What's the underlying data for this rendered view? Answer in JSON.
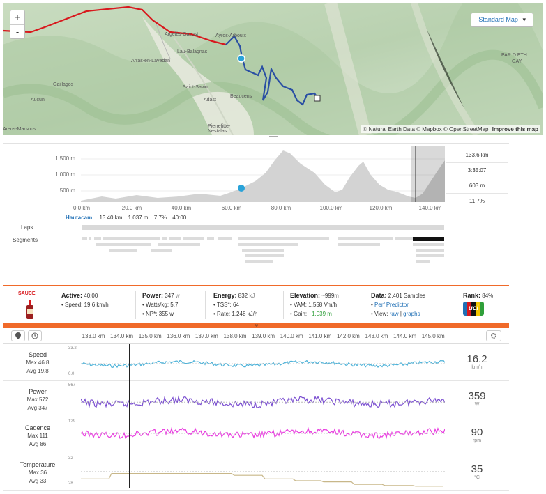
{
  "map": {
    "zoom_in": "+",
    "zoom_out": "-",
    "style_button": "Standard Map",
    "style_caret": "▾",
    "attribution": "© Natural Earth Data © Mapbox © OpenStreetMap",
    "improve": "Improve this map",
    "places": [
      "Argelès-Gazost",
      "Ayros-Arbouix",
      "Lau-Balagnas",
      "Arras-en-Lavedan",
      "Gaillagos",
      "Aucun",
      "Saint-Savin",
      "Adast",
      "Beaucens",
      "Pierrefitte-Nestalas",
      "Arens-Marsous",
      "PAR D ETH",
      "GAY"
    ]
  },
  "elevation": {
    "y_ticks": [
      "1,500 m",
      "1,000 m",
      "500 m"
    ],
    "x_ticks": [
      "0.0 km",
      "20.0 km",
      "40.0 km",
      "60.0 km",
      "80.0 km",
      "100.0 km",
      "120.0 km",
      "140.0 km"
    ],
    "stats": [
      "133.6 km",
      "3:35:07",
      "603 m",
      "11.7%"
    ],
    "segment_name": "Hautacam",
    "segment_stats": [
      "13.40 km",
      "1,037 m",
      "7.7%",
      "40:00"
    ],
    "laps_label": "Laps",
    "segments_label": "Segments"
  },
  "sauce": {
    "logo_text": "SAUCE",
    "active_label": "Active:",
    "active_value": "40:00",
    "speed_line": "• Speed: 19.6 km/h",
    "power_label": "Power:",
    "power_value": "347",
    "power_unit": "w",
    "wkg_line": "• Watts/kg: 5.7",
    "np_line": "• NP*: 355 w",
    "energy_label": "Energy:",
    "energy_value": "832",
    "energy_unit": "kJ",
    "tss_line": "• TSS*: 64",
    "rate_line": "• Rate: 1,248 kJ/h",
    "elev_label": "Elevation:",
    "elev_value": "~999",
    "elev_unit": "m",
    "vam_line": "• VAM: 1,558 Vm/h",
    "gain_prefix": "• Gain:",
    "gain_value": "+1,039 m",
    "data_label": "Data:",
    "data_value": "2,401 Samples",
    "perf_prefix": "• ",
    "perf_link": "Perf Predictor",
    "view_prefix": "• View:",
    "view_raw": "raw",
    "view_sep": "|",
    "view_graphs": "graphs",
    "rank_label": "Rank:",
    "rank_value": "84%",
    "rank_badge": "uci"
  },
  "streams": {
    "toggle": "»",
    "km_ticks": [
      "133.0 km",
      "134.0 km",
      "135.0 km",
      "136.0 km",
      "137.0 km",
      "138.0 km",
      "139.0 km",
      "140.0 km",
      "141.0 km",
      "142.0 km",
      "143.0 km",
      "144.0 km",
      "145.0 km"
    ],
    "rows": [
      {
        "name": "Speed",
        "max": "Max 46.8",
        "avg": "Avg 19.8",
        "top": "33.2",
        "bottom": "0.0",
        "value": "16.2",
        "unit": "km/h",
        "color": "#4fb3d9"
      },
      {
        "name": "Power",
        "max": "Max 572",
        "avg": "Avg 347",
        "top": "567",
        "bottom": "",
        "value": "359",
        "unit": "W",
        "color": "#7b4fd1"
      },
      {
        "name": "Cadence",
        "max": "Max 111",
        "avg": "Avg 86",
        "top": "129",
        "bottom": "",
        "value": "90",
        "unit": "rpm",
        "color": "#e93ee0"
      },
      {
        "name": "Temperature",
        "max": "Max 36",
        "avg": "Avg 33",
        "top": "32",
        "bottom": "28",
        "value": "35",
        "unit": "°C",
        "color": "#c8b789"
      }
    ]
  }
}
